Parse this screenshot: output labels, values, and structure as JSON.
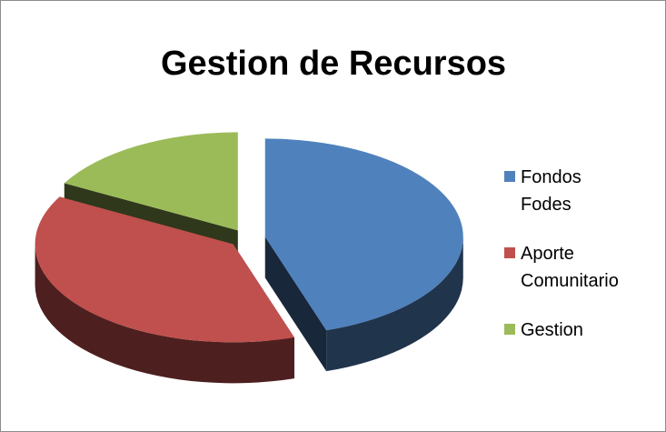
{
  "chart_data": {
    "type": "pie",
    "title": "Gestion de Recursos",
    "categories": [
      "Fondos Fodes",
      "Aporte Comunitario",
      "Gestion"
    ],
    "values": [
      45,
      38,
      17
    ],
    "colors": [
      "#4f81bd",
      "#c0504d",
      "#9bbb59"
    ],
    "legend": "right"
  }
}
